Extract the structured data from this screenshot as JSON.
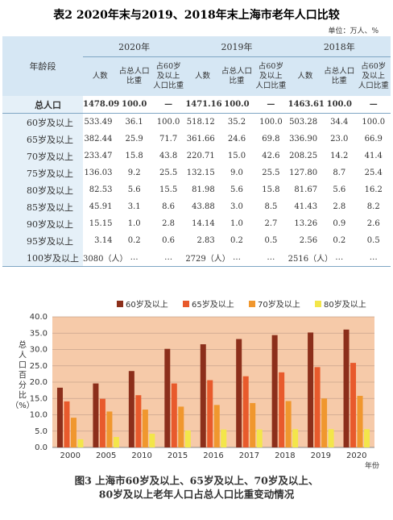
{
  "header": {
    "title": "表2 2020年末与2019、2018年末上海市老年人口比较",
    "unit": "单位：万人、%"
  },
  "table": {
    "age_header": "年龄段",
    "years": [
      "2020年",
      "2019年",
      "2018年"
    ],
    "columns": [
      [
        "人数"
      ],
      [
        "占总人口",
        "比重"
      ],
      [
        "占60岁",
        "及以上",
        "人口比重"
      ]
    ],
    "rows": [
      [
        "总人口",
        "1478.09",
        "100.0",
        "—",
        "1471.16",
        "100.0",
        "—",
        "1463.61",
        "100.0",
        "—"
      ],
      [
        "60岁及以上",
        "533.49",
        "36.1",
        "100.0",
        "518.12",
        "35.2",
        "100.0",
        "503.28",
        "34.4",
        "100.0"
      ],
      [
        "65岁及以上",
        "382.44",
        "25.9",
        "71.7",
        "361.66",
        "24.6",
        "69.8",
        "336.90",
        "23.0",
        "66.9"
      ],
      [
        "70岁及以上",
        "233.47",
        "15.8",
        "43.8",
        "220.71",
        "15.0",
        "42.6",
        "208.25",
        "14.2",
        "41.4"
      ],
      [
        "75岁及以上",
        "136.03",
        "9.2",
        "25.5",
        "132.15",
        "9.0",
        "25.5",
        "127.80",
        "8.7",
        "25.4"
      ],
      [
        "80岁及以上",
        "82.53",
        "5.6",
        "15.5",
        "81.98",
        "5.6",
        "15.8",
        "81.67",
        "5.6",
        "16.2"
      ],
      [
        "85岁及以上",
        "45.91",
        "3.1",
        "8.6",
        "43.88",
        "3.0",
        "8.5",
        "41.43",
        "2.8",
        "8.2"
      ],
      [
        "90岁及以上",
        "15.15",
        "1.0",
        "2.8",
        "14.14",
        "1.0",
        "2.7",
        "13.26",
        "0.9",
        "2.6"
      ],
      [
        "95岁及以上",
        "3.14",
        "0.2",
        "0.6",
        "2.83",
        "0.2",
        "0.5",
        "2.56",
        "0.2",
        "0.5"
      ],
      [
        "100岁及以上",
        "3080（人）",
        "…",
        "…",
        "2729（人）",
        "…",
        "…",
        "2516（人）",
        "…",
        "…"
      ]
    ]
  },
  "chart_data": {
    "type": "bar",
    "caption": [
      "图3 上海市60岁及以上、65岁及以上、70岁及以上、",
      "80岁及以上老年人口占总人口比重变动情况"
    ],
    "y_label": [
      "总",
      "人",
      "口",
      "百",
      "分",
      "比",
      "（%）"
    ],
    "x_label": "年份",
    "categories": [
      "2000",
      "2005",
      "2010",
      "2015",
      "2016",
      "2017",
      "2018",
      "2019",
      "2020"
    ],
    "series": [
      {
        "name": "60岁及以上",
        "color": "#8c2f1b",
        "values": [
          18.3,
          19.6,
          23.4,
          30.2,
          31.6,
          33.2,
          34.4,
          35.2,
          36.1
        ]
      },
      {
        "name": "65岁及以上",
        "color": "#e85a2c",
        "values": [
          14.1,
          14.9,
          16.0,
          19.6,
          20.6,
          21.8,
          23.0,
          24.6,
          25.9
        ]
      },
      {
        "name": "70岁及以上",
        "color": "#f0972e",
        "values": [
          9.1,
          11.0,
          11.6,
          12.5,
          13.0,
          13.6,
          14.2,
          15.0,
          15.8
        ]
      },
      {
        "name": "80岁及以上",
        "color": "#f3e64a",
        "values": [
          2.5,
          3.2,
          4.2,
          5.2,
          5.5,
          5.5,
          5.6,
          5.6,
          5.6
        ]
      }
    ],
    "ylim": [
      0,
      40
    ],
    "yticks": [
      {
        "value": 0,
        "label": "0.0"
      },
      {
        "value": 5,
        "label": "5.0"
      },
      {
        "value": 10,
        "label": "10.0"
      },
      {
        "value": 15,
        "label": "15.0"
      },
      {
        "value": 20,
        "label": "20.0"
      },
      {
        "value": 25,
        "label": "25.0"
      },
      {
        "value": 30,
        "label": "30.0"
      },
      {
        "value": 35,
        "label": "35.0"
      },
      {
        "value": 40,
        "label": "40.0"
      }
    ],
    "grid": true,
    "legend": "top-right",
    "plot_background": "#f6caa9"
  }
}
